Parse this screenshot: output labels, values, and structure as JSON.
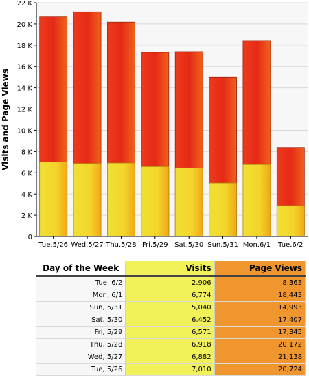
{
  "chart_data": {
    "type": "bar",
    "stacked": false,
    "overlapping": true,
    "categories": [
      "Tue.5/26",
      "Wed.5/27",
      "Thu.5/28",
      "Fri.5/29",
      "Sat.5/30",
      "Sun.5/31",
      "Mon.6/1",
      "Tue.6/2"
    ],
    "series": [
      {
        "name": "Visits",
        "values": [
          7010,
          6882,
          6918,
          6571,
          6452,
          5040,
          6774,
          2906
        ],
        "color": "#f1e33a"
      },
      {
        "name": "Page Views",
        "values": [
          20724,
          21138,
          20172,
          17345,
          17407,
          14993,
          18443,
          8363
        ],
        "color": "#e8321b"
      }
    ],
    "ylabel": "Visits and Page Views",
    "ylim": [
      0,
      22000
    ],
    "yticks": [
      0,
      2000,
      4000,
      6000,
      8000,
      10000,
      12000,
      14000,
      16000,
      18000,
      20000,
      22000
    ],
    "ytick_labels": [
      "0",
      "2 K",
      "4 K",
      "6 K",
      "8 K",
      "10 K",
      "12 K",
      "14 K",
      "16 K",
      "18 K",
      "20 K",
      "22 K"
    ],
    "grid": true
  },
  "table": {
    "headers": [
      "Day of the Week",
      "Visits",
      "Page Views"
    ],
    "rows": [
      [
        "Tue, 6/2",
        "2,906",
        "8,363"
      ],
      [
        "Mon, 6/1",
        "6,774",
        "18,443"
      ],
      [
        "Sun, 5/31",
        "5,040",
        "14,993"
      ],
      [
        "Sat, 5/30",
        "6,452",
        "17,407"
      ],
      [
        "Fri, 5/29",
        "6,571",
        "17,345"
      ],
      [
        "Thu, 5/28",
        "6,918",
        "20,172"
      ],
      [
        "Wed, 5/27",
        "6,882",
        "21,138"
      ],
      [
        "Tue, 5/26",
        "7,010",
        "20,724"
      ]
    ]
  },
  "colors": {
    "visits_column": "#f1f15a",
    "pageviews_column": "#f0962f",
    "gridline": "#d8d8d8",
    "plot_background": "#f7f7f7"
  }
}
